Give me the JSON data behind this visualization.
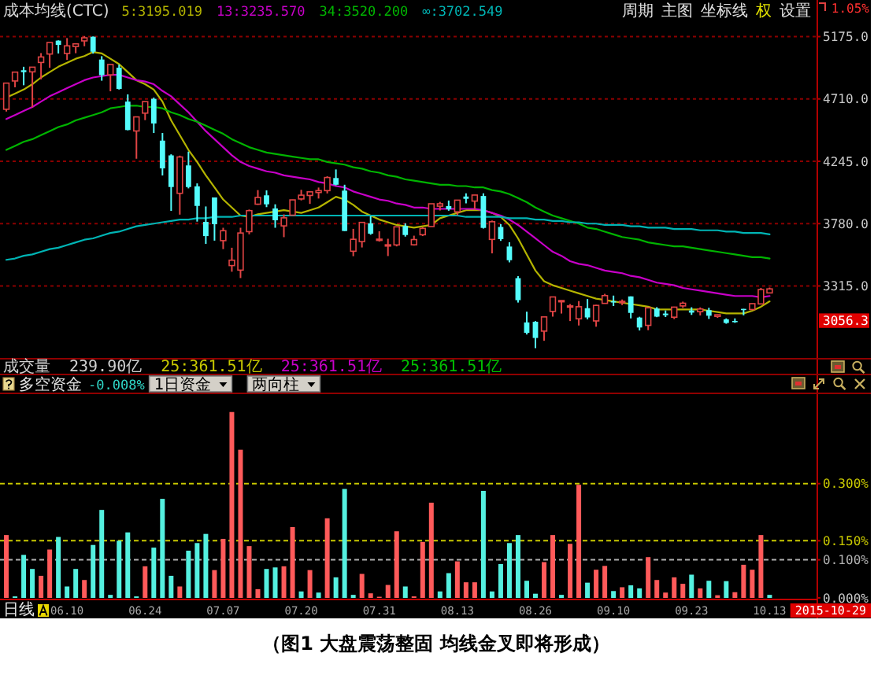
{
  "chart_data": [
    {
      "type": "candlestick",
      "title": "成本均线(CTC)",
      "subtitle": "1.05%",
      "categories": [
        null,
        null,
        null,
        null,
        null,
        null,
        null,
        null,
        null,
        null,
        null,
        null,
        null,
        null,
        null,
        null,
        null,
        null,
        null,
        null,
        null,
        null,
        null,
        null,
        null,
        null,
        null,
        null,
        null,
        null,
        null,
        null,
        null,
        null,
        null,
        null,
        null,
        null,
        null,
        null,
        null,
        null,
        null,
        null,
        null,
        null,
        null,
        null,
        null,
        null,
        null,
        null,
        null,
        null,
        null,
        null,
        null,
        null,
        null,
        null,
        null,
        null,
        null,
        null,
        null,
        null,
        null,
        null,
        null,
        null,
        null,
        null,
        null,
        null,
        null,
        null,
        null,
        null,
        null,
        null,
        null,
        null,
        null,
        null,
        null,
        null,
        null,
        null,
        null
      ],
      "ohlc": [
        [
          4633,
          4829,
          4616,
          4828
        ],
        [
          4844,
          4911,
          4797,
          4910
        ],
        [
          4924,
          4950,
          4812,
          4910
        ],
        [
          4912,
          4947,
          4647,
          4947
        ],
        [
          4982,
          5052,
          4856,
          5023
        ],
        [
          5045,
          5131,
          4942,
          5131
        ],
        [
          5145,
          5147,
          5049,
          5113
        ],
        [
          5049,
          5164,
          5001,
          5106
        ],
        [
          5101,
          5122,
          5051,
          5121
        ],
        [
          5143,
          5178,
          5103,
          5166
        ],
        [
          5174,
          5176,
          5048,
          5062
        ],
        [
          5004,
          5029,
          4846,
          4887
        ],
        [
          4890,
          4967,
          4767,
          4967
        ],
        [
          4943,
          4966,
          4780,
          4785
        ],
        [
          4690,
          4744,
          4476,
          4478
        ],
        [
          4471,
          4577,
          4264,
          4576
        ],
        [
          4604,
          4691,
          4552,
          4690
        ],
        [
          4711,
          4720,
          4456,
          4527
        ],
        [
          4399,
          4456,
          4139,
          4192
        ],
        [
          4289,
          4297,
          3875,
          4053
        ],
        [
          4006,
          4287,
          3847,
          4277
        ],
        [
          4214,
          4317,
          4043,
          4053
        ],
        [
          4058,
          4080,
          3795,
          3912
        ],
        [
          3793,
          3908,
          3629,
          3687
        ],
        [
          3975,
          3975,
          3653,
          3776
        ],
        [
          3653,
          3749,
          3590,
          3727
        ],
        [
          3467,
          3600,
          3421,
          3507
        ],
        [
          3433,
          3749,
          3374,
          3710
        ],
        [
          3720,
          3885,
          3700,
          3877
        ],
        [
          3925,
          4030,
          3920,
          3975
        ],
        [
          3991,
          4028,
          3903,
          3924
        ],
        [
          3893,
          3924,
          3749,
          3805
        ],
        [
          3763,
          3849,
          3679,
          3823
        ],
        [
          3843,
          3959,
          3843,
          3957
        ],
        [
          3964,
          4032,
          3953,
          3992
        ],
        [
          3990,
          4020,
          3927,
          4017
        ],
        [
          4012,
          4049,
          3967,
          4026
        ],
        [
          4026,
          4133,
          4005,
          4124
        ],
        [
          4120,
          4184,
          4065,
          4070
        ],
        [
          4026,
          4070,
          3725,
          3725
        ],
        [
          3574,
          3741,
          3537,
          3663
        ],
        [
          3646,
          3790,
          3602,
          3789
        ],
        [
          3782,
          3836,
          3697,
          3705
        ],
        [
          3658,
          3723,
          3646,
          3664
        ],
        [
          3614,
          3667,
          3538,
          3622
        ],
        [
          3621,
          3756,
          3610,
          3756
        ],
        [
          3762,
          3782,
          3683,
          3695
        ],
        [
          3622,
          3690,
          3616,
          3661
        ],
        [
          3697,
          3753,
          3687,
          3744
        ],
        [
          3758,
          3928,
          3758,
          3928
        ],
        [
          3910,
          3942,
          3878,
          3928
        ],
        [
          3911,
          3952,
          3876,
          3887
        ],
        [
          3868,
          3955,
          3842,
          3955
        ],
        [
          3982,
          4006,
          3931,
          3965
        ],
        [
          3948,
          3994,
          3889,
          3993
        ],
        [
          3986,
          4006,
          3743,
          3748
        ],
        [
          3662,
          3803,
          3558,
          3794
        ],
        [
          3755,
          3776,
          3651,
          3664
        ],
        [
          3609,
          3641,
          3491,
          3507
        ],
        [
          3373,
          3388,
          3191,
          3209
        ],
        [
          3043,
          3123,
          2953,
          2965
        ],
        [
          3048,
          3053,
          2851,
          2927
        ],
        [
          2978,
          3084,
          2906,
          3084
        ],
        [
          3125,
          3233,
          3086,
          3233
        ],
        [
          3204,
          3207,
          3109,
          3206
        ],
        [
          3157,
          3180,
          3053,
          3166
        ],
        [
          3070,
          3202,
          3020,
          3160
        ],
        [
          3149,
          3217,
          3066,
          3080
        ],
        [
          3054,
          3174,
          3011,
          3170
        ],
        [
          3185,
          3256,
          3183,
          3243
        ],
        [
          3201,
          3243,
          3165,
          3197
        ],
        [
          3191,
          3214,
          3172,
          3200
        ],
        [
          3237,
          3237,
          3073,
          3114
        ],
        [
          3079,
          3085,
          2983,
          3005
        ],
        [
          3021,
          3153,
          2985,
          3152
        ],
        [
          3146,
          3157,
          3082,
          3086
        ],
        [
          3109,
          3132,
          3083,
          3097
        ],
        [
          3082,
          3160,
          3068,
          3157
        ],
        [
          3166,
          3198,
          3151,
          3186
        ],
        [
          3132,
          3156,
          3099,
          3116
        ],
        [
          3123,
          3155,
          3095,
          3143
        ],
        [
          3134,
          3152,
          3069,
          3093
        ],
        [
          3088,
          3102,
          3077,
          3100
        ],
        [
          3066,
          3073,
          3033,
          3039
        ],
        [
          3054,
          3073,
          3040,
          3053
        ],
        [
          3144,
          3144,
          3096,
          3143
        ],
        [
          3139,
          3185,
          3135,
          3183
        ],
        [
          3181,
          3300,
          3179,
          3288
        ],
        [
          3263,
          3303,
          3263,
          3293
        ]
      ],
      "series": [
        {
          "name": "5:3195.019",
          "type": "line",
          "color": "#b4b400",
          "values": [
            4720,
            4750,
            4780,
            4820,
            4870,
            4910,
            4950,
            4980,
            5010,
            5030,
            5060,
            5050,
            5010,
            4970,
            4910,
            4850,
            4820,
            4780,
            4690,
            4550,
            4440,
            4330,
            4240,
            4140,
            4050,
            3960,
            3900,
            3840,
            3830,
            3850,
            3860,
            3870,
            3880,
            3870,
            3860,
            3880,
            3900,
            3940,
            3980,
            3960,
            3920,
            3870,
            3840,
            3810,
            3790,
            3770,
            3760,
            3750,
            3760,
            3770,
            3820,
            3840,
            3860,
            3880,
            3880,
            3880,
            3860,
            3830,
            3770,
            3670,
            3550,
            3430,
            3350,
            3320,
            3300,
            3280,
            3260,
            3240,
            3220,
            3210,
            3200,
            3190,
            3180,
            3170,
            3160,
            3140,
            3140,
            3140,
            3140,
            3140,
            3140,
            3130,
            3120,
            3110,
            3110,
            3110,
            3130,
            3160,
            3200
          ]
        },
        {
          "name": "13:3235.570",
          "type": "line",
          "color": "#c800c8",
          "values": [
            4560,
            4590,
            4620,
            4650,
            4690,
            4730,
            4760,
            4790,
            4820,
            4850,
            4870,
            4880,
            4890,
            4890,
            4870,
            4850,
            4840,
            4820,
            4770,
            4730,
            4670,
            4610,
            4540,
            4470,
            4410,
            4350,
            4290,
            4240,
            4210,
            4190,
            4170,
            4160,
            4140,
            4130,
            4120,
            4110,
            4090,
            4080,
            4060,
            4050,
            4020,
            4000,
            3980,
            3960,
            3950,
            3930,
            3920,
            3900,
            3900,
            3890,
            3890,
            3890,
            3890,
            3890,
            3890,
            3880,
            3860,
            3840,
            3810,
            3770,
            3720,
            3670,
            3620,
            3570,
            3540,
            3500,
            3480,
            3470,
            3450,
            3430,
            3420,
            3410,
            3390,
            3380,
            3360,
            3340,
            3330,
            3320,
            3300,
            3290,
            3280,
            3270,
            3260,
            3250,
            3240,
            3240,
            3240,
            3230,
            3240
          ]
        },
        {
          "name": "34:3520.200",
          "type": "line",
          "color": "#00b400",
          "values": [
            4330,
            4360,
            4390,
            4410,
            4440,
            4470,
            4500,
            4520,
            4550,
            4570,
            4590,
            4610,
            4640,
            4650,
            4660,
            4660,
            4650,
            4650,
            4640,
            4610,
            4590,
            4560,
            4540,
            4510,
            4480,
            4450,
            4410,
            4380,
            4350,
            4330,
            4310,
            4300,
            4290,
            4280,
            4270,
            4260,
            4260,
            4240,
            4230,
            4220,
            4200,
            4190,
            4170,
            4160,
            4140,
            4130,
            4110,
            4100,
            4090,
            4080,
            4070,
            4070,
            4060,
            4060,
            4050,
            4050,
            4030,
            4020,
            4000,
            3970,
            3940,
            3900,
            3870,
            3840,
            3820,
            3800,
            3780,
            3750,
            3740,
            3720,
            3700,
            3680,
            3670,
            3660,
            3640,
            3630,
            3620,
            3610,
            3610,
            3600,
            3590,
            3580,
            3570,
            3560,
            3550,
            3540,
            3530,
            3530,
            3520
          ]
        },
        {
          "name": "∞:3702.549",
          "type": "line",
          "color": "#00b4b4",
          "values": [
            3510,
            3520,
            3540,
            3550,
            3570,
            3590,
            3600,
            3620,
            3640,
            3660,
            3670,
            3690,
            3710,
            3720,
            3740,
            3760,
            3770,
            3780,
            3790,
            3800,
            3810,
            3810,
            3820,
            3820,
            3830,
            3830,
            3830,
            3840,
            3840,
            3840,
            3840,
            3840,
            3840,
            3840,
            3840,
            3840,
            3840,
            3840,
            3840,
            3840,
            3840,
            3840,
            3840,
            3840,
            3840,
            3840,
            3840,
            3840,
            3840,
            3840,
            3840,
            3840,
            3840,
            3830,
            3830,
            3830,
            3830,
            3830,
            3820,
            3820,
            3820,
            3810,
            3810,
            3800,
            3800,
            3790,
            3790,
            3780,
            3780,
            3770,
            3770,
            3770,
            3760,
            3760,
            3750,
            3750,
            3750,
            3740,
            3740,
            3740,
            3730,
            3730,
            3730,
            3720,
            3720,
            3710,
            3710,
            3710,
            3700
          ]
        }
      ],
      "ylim": [
        2772,
        5448
      ],
      "yticks": [
        {
          "value": 5175,
          "label": "5175.0"
        },
        {
          "value": 4710,
          "label": "4710.0"
        },
        {
          "value": 4245,
          "label": "4245.0"
        },
        {
          "value": 3780,
          "label": "3780.0"
        },
        {
          "value": 3315,
          "label": "3315.0"
        }
      ],
      "grid": "y",
      "legend": "top left",
      "annotations": [
        "周期",
        "主图",
        "坐标线",
        "权",
        "设置",
        "3056.3"
      ]
    },
    {
      "type": "other",
      "title": "成交量",
      "annotations": [
        "239.90亿",
        "25:361.51亿",
        "25:361.51亿",
        "25:361.51亿"
      ]
    },
    {
      "type": "bar",
      "title": "多空资金",
      "subtitle": "-0.008%",
      "categories": [
        null,
        null,
        null,
        null,
        null,
        null,
        null,
        "06.10",
        null,
        null,
        null,
        null,
        null,
        null,
        null,
        null,
        "06.24",
        null,
        null,
        null,
        null,
        null,
        null,
        null,
        null,
        "07.07",
        null,
        null,
        null,
        null,
        null,
        null,
        null,
        null,
        "07.20",
        null,
        null,
        null,
        null,
        null,
        null,
        null,
        null,
        "07.31",
        null,
        null,
        null,
        null,
        null,
        null,
        null,
        null,
        "08.13",
        null,
        null,
        null,
        null,
        null,
        null,
        null,
        null,
        "08.26",
        null,
        null,
        null,
        null,
        null,
        null,
        null,
        null,
        "09.10",
        null,
        null,
        null,
        null,
        null,
        null,
        null,
        null,
        "09.23",
        null,
        null,
        null,
        null,
        null,
        null,
        null,
        null,
        "10.13"
      ],
      "values": [
        0.165,
        0.004,
        0.113,
        0.076,
        0.058,
        0.127,
        0.16,
        0.03,
        0.076,
        0.047,
        0.139,
        0.231,
        0.008,
        0.15,
        0.172,
        0.004,
        0.083,
        0.132,
        0.26,
        0.058,
        0.03,
        0.124,
        0.144,
        0.168,
        0.073,
        0.155,
        0.488,
        0.389,
        0.136,
        0.023,
        0.076,
        0.08,
        0.083,
        0.186,
        0.017,
        0.073,
        0.014,
        0.209,
        0.054,
        0.286,
        0.008,
        0.063,
        0.012,
        0.003,
        0.034,
        0.175,
        0.03,
        0.004,
        0.147,
        0.25,
        0.017,
        0.065,
        0.096,
        0.041,
        0.041,
        0.281,
        0.017,
        0.089,
        0.144,
        0.165,
        0.045,
        0.011,
        0.094,
        0.165,
        0.008,
        0.142,
        0.297,
        0.04,
        0.074,
        0.084,
        0.018,
        0.028,
        0.033,
        0.025,
        0.107,
        0.047,
        0.014,
        0.054,
        0.037,
        0.061,
        0.025,
        0.045,
        0.007,
        0.044,
        0.015,
        0.087,
        0.074,
        0.165,
        0.008
      ],
      "colors": [
        "#ff5a5a",
        "#54f0e0",
        "#54f0e0",
        "#54f0e0",
        "#ff5a5a",
        "#ff5a5a",
        "#54f0e0",
        "#54f0e0",
        "#54f0e0",
        "#ff5a5a",
        "#54f0e0",
        "#54f0e0",
        "#54f0e0",
        "#54f0e0",
        "#54f0e0",
        "#54f0e0",
        "#ff5a5a",
        "#54f0e0",
        "#54f0e0",
        "#54f0e0",
        "#ff5a5a",
        "#54f0e0",
        "#54f0e0",
        "#54f0e0",
        "#ff5a5a",
        "#ff5a5a",
        "#ff5a5a",
        "#ff5a5a",
        "#ff5a5a",
        "#ff5a5a",
        "#54f0e0",
        "#54f0e0",
        "#ff5a5a",
        "#ff5a5a",
        "#54f0e0",
        "#ff5a5a",
        "#54f0e0",
        "#ff5a5a",
        "#54f0e0",
        "#54f0e0",
        "#54f0e0",
        "#ff5a5a",
        "#ff5a5a",
        "#ff5a5a",
        "#ff5a5a",
        "#ff5a5a",
        "#54f0e0",
        "#ff5a5a",
        "#ff5a5a",
        "#ff5a5a",
        "#54f0e0",
        "#54f0e0",
        "#ff5a5a",
        "#ff5a5a",
        "#ff5a5a",
        "#54f0e0",
        "#54f0e0",
        "#54f0e0",
        "#54f0e0",
        "#54f0e0",
        "#54f0e0",
        "#54f0e0",
        "#ff5a5a",
        "#ff5a5a",
        "#54f0e0",
        "#ff5a5a",
        "#ff5a5a",
        "#54f0e0",
        "#ff5a5a",
        "#ff5a5a",
        "#54f0e0",
        "#ff5a5a",
        "#54f0e0",
        "#54f0e0",
        "#ff5a5a",
        "#ff5a5a",
        "#ff5a5a",
        "#ff5a5a",
        "#ff5a5a",
        "#54f0e0",
        "#ff5a5a",
        "#54f0e0",
        "#ff5a5a",
        "#54f0e0",
        "#ff5a5a",
        "#ff5a5a",
        "#ff5a5a",
        "#ff5a5a",
        "#54f0e0"
      ],
      "ylim": [
        0,
        0.537
      ],
      "yticks": [
        {
          "value": 0.3,
          "label": "0.300%"
        },
        {
          "value": 0.15,
          "label": "0.150%"
        },
        {
          "value": 0.1,
          "label": "0.100%"
        },
        {
          "value": 0,
          "label": "0.000%"
        }
      ],
      "ref_lines": [
        {
          "axis": "y",
          "value": 0.3,
          "color": "#c8c800",
          "line_style": "dashed"
        },
        {
          "axis": "y",
          "value": 0.15,
          "color": "#c8c800",
          "line_style": "dashed"
        },
        {
          "axis": "y",
          "value": 0.1,
          "color": "#b0b0b0",
          "line_style": "dashed"
        }
      ],
      "annotations": [
        "1日资金",
        "两向柱",
        "日线",
        "2015-10-29",
        "（图1 大盘震荡整固 均线金叉即将形成）"
      ]
    }
  ]
}
